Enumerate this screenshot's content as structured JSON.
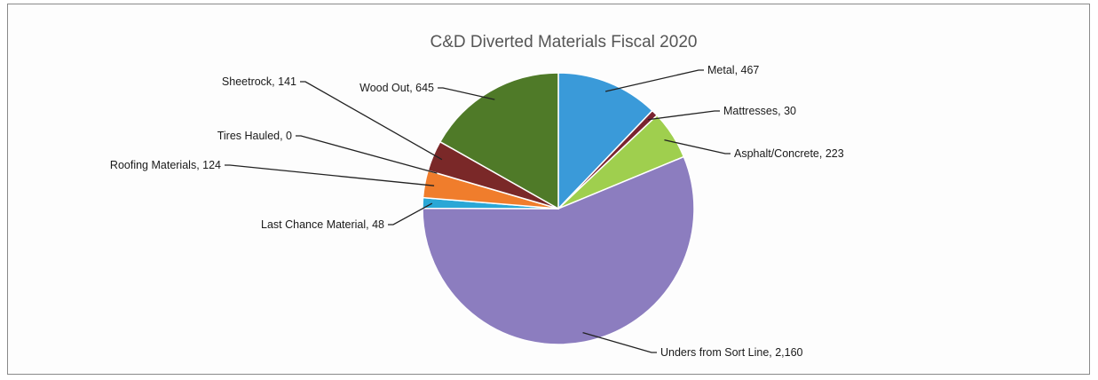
{
  "chart_data": {
    "type": "pie",
    "title": "C&D Diverted Materials Fiscal 2020",
    "slices": [
      {
        "category": "Metal",
        "value": 467,
        "label": "Metal, 467",
        "color": "#3a9ad9"
      },
      {
        "category": "Mattresses",
        "value": 30,
        "label": "Mattresses, 30",
        "color": "#7a2430"
      },
      {
        "category": "Asphalt/Concrete",
        "value": 223,
        "label": "Asphalt/Concrete, 223",
        "color": "#9fcf4e"
      },
      {
        "category": "Unders from Sort Line",
        "value": 2160,
        "label": "Unders from Sort Line, 2,160",
        "color": "#8c7dbf"
      },
      {
        "category": "Last Chance Material",
        "value": 48,
        "label": "Last Chance Material, 48",
        "color": "#2aa7d6"
      },
      {
        "category": "Roofing Materials",
        "value": 124,
        "label": "Roofing Materials, 124",
        "color": "#f07d2c"
      },
      {
        "category": "Tires Hauled",
        "value": 0,
        "label": "Tires Hauled, 0",
        "color": "#444444"
      },
      {
        "category": "Sheetrock",
        "value": 141,
        "label": "Sheetrock, 141",
        "color": "#7a2828"
      },
      {
        "category": "Wood Out",
        "value": 645,
        "label": "Wood Out, 645",
        "color": "#4f7a28"
      }
    ]
  }
}
